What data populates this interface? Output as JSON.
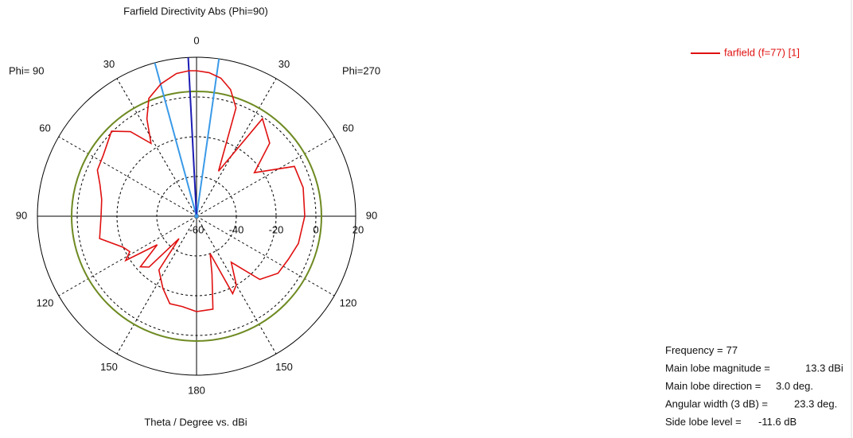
{
  "chart_data": {
    "type": "polar",
    "title": "Farfield Directivity Abs (Phi=90)",
    "x_label": "Theta / Degree vs. dBi",
    "left_label": "Phi= 90",
    "right_label": "Phi=270",
    "angle_ticks": [
      0,
      30,
      60,
      90,
      120,
      150,
      180
    ],
    "rlim": [
      -60,
      20
    ],
    "rticks": [
      -60,
      -40,
      -20,
      0,
      20
    ],
    "x": [
      -180,
      -170,
      -165,
      -160,
      -155,
      -150,
      -143,
      -135,
      -125,
      -115,
      -105,
      -90,
      -75,
      -63,
      -53,
      -45,
      -34,
      -26,
      -20,
      -15,
      -10,
      -5,
      0,
      3,
      8,
      15,
      22,
      27,
      32,
      38,
      45,
      57,
      65,
      72,
      80,
      90,
      103,
      113,
      118,
      122,
      126,
      132,
      137,
      142,
      145,
      155,
      163,
      171,
      180
    ],
    "series": [
      {
        "name": "farfield (f=77) [1]",
        "color": "#e01010",
        "values": [
          -12,
          -12.5,
          -30,
          -40,
          -17,
          -20,
          -31,
          -15,
          -10,
          -9,
          -7,
          -5.6,
          -4.5,
          -4.8,
          -23.6,
          -8,
          -0.8,
          -34.8,
          -2,
          6,
          10.5,
          12.5,
          13.2,
          13.3,
          12.5,
          9,
          4,
          -5,
          -16.8,
          -6,
          0.5,
          -4,
          -5,
          -9,
          -11.6,
          -12,
          -10,
          -20,
          -22,
          -18,
          -35.6,
          -22,
          -25,
          -45.7,
          -27,
          -20,
          -14,
          -14,
          -12
        ]
      }
    ],
    "reference_level": 2.8,
    "reference_color": "#6e8a22",
    "main_lobe_direction": 3.0,
    "main_lobe_color": "#1c1cb4",
    "beamwidth_edges": [
      15.2,
      -8.1
    ],
    "beamwidth_color": "#3a9ae8",
    "info": [
      {
        "label": "Frequency =",
        "value": "77"
      },
      {
        "label": "Main lobe magnitude =",
        "value": "13.3 dBi"
      },
      {
        "label": "Main lobe direction =",
        "value": "3.0 deg."
      },
      {
        "label": "Angular width (3 dB) =",
        "value": "23.3 deg."
      },
      {
        "label": "Side lobe level =",
        "value": "-11.6 dB"
      }
    ]
  }
}
